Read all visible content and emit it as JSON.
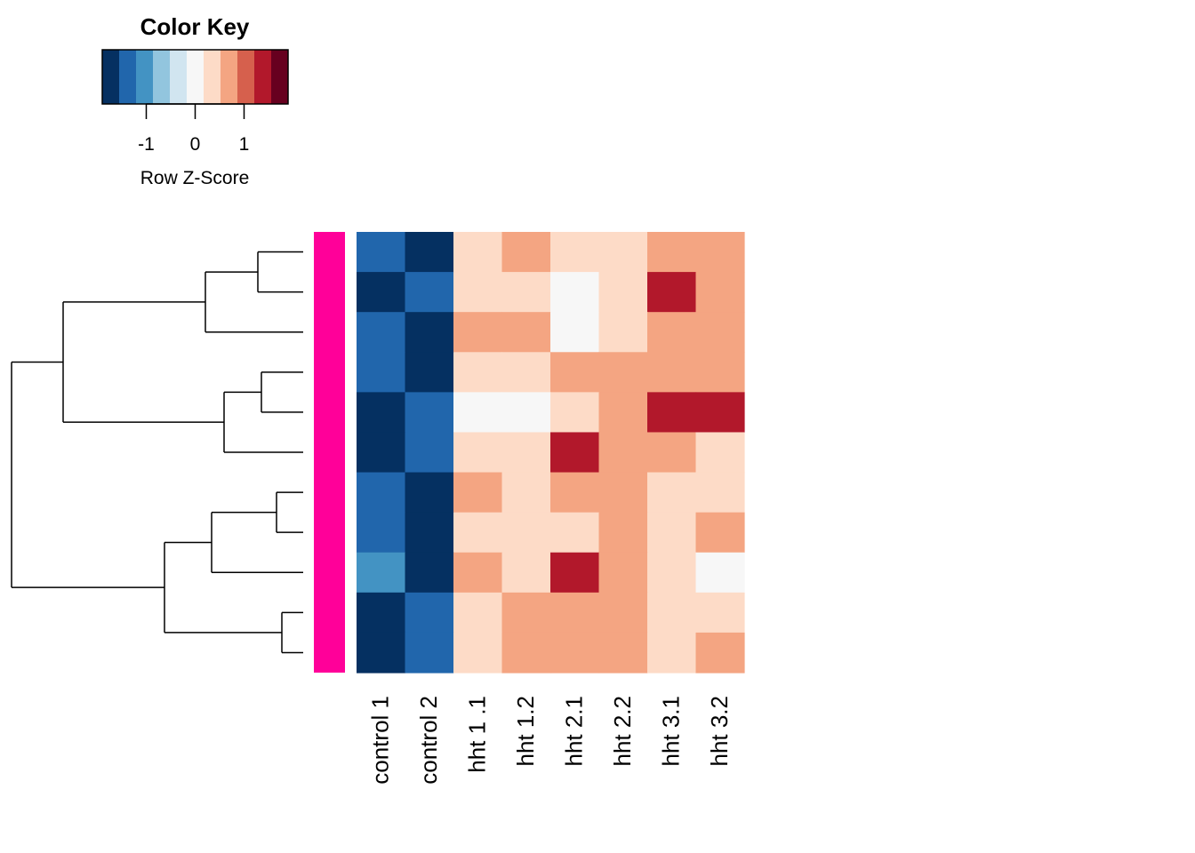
{
  "chart_data": {
    "type": "heatmap",
    "title": "",
    "columns": [
      "control 1",
      "control 2",
      "hht 1 .1",
      "hht 1.2",
      "hht 2.1",
      "hht 2.2",
      "hht 3.1",
      "hht 3.2"
    ],
    "rows": 11,
    "values": [
      [
        -1.5,
        -2.1,
        0.3,
        0.8,
        0.3,
        0.3,
        0.8,
        0.8
      ],
      [
        -2.1,
        -1.5,
        0.3,
        0.3,
        0.0,
        0.3,
        1.3,
        0.8
      ],
      [
        -1.5,
        -2.1,
        0.8,
        0.8,
        0.0,
        0.3,
        0.8,
        0.8
      ],
      [
        -1.5,
        -2.1,
        0.3,
        0.3,
        0.8,
        0.8,
        0.8,
        0.8
      ],
      [
        -2.1,
        -1.5,
        0.0,
        0.0,
        0.3,
        0.8,
        1.3,
        1.3
      ],
      [
        -2.1,
        -1.5,
        0.3,
        0.3,
        1.3,
        0.8,
        0.8,
        0.3
      ],
      [
        -1.5,
        -2.1,
        0.8,
        0.3,
        0.8,
        0.8,
        0.3,
        0.3
      ],
      [
        -1.5,
        -2.1,
        0.3,
        0.3,
        0.3,
        0.8,
        0.3,
        0.8
      ],
      [
        -1.1,
        -2.1,
        0.8,
        0.3,
        1.3,
        0.8,
        0.3,
        0.0
      ],
      [
        -2.1,
        -1.5,
        0.3,
        0.8,
        0.8,
        0.8,
        0.3,
        0.3
      ],
      [
        -2.1,
        -1.5,
        0.3,
        0.8,
        0.8,
        0.8,
        0.3,
        0.8
      ]
    ],
    "row_side_color": "#FF0099",
    "color_key": {
      "title": "Color Key",
      "xlabel": "Row Z-Score",
      "range": [
        -1.9,
        1.9
      ],
      "ticks": [
        -1,
        0,
        1
      ],
      "tick_labels": [
        "-1",
        "0",
        "1"
      ],
      "colors": [
        "#053061",
        "#2166AC",
        "#4393C3",
        "#92C5DE",
        "#D1E5F0",
        "#F7F7F7",
        "#FDDBC7",
        "#F4A582",
        "#D6604D",
        "#B2182B",
        "#67001F"
      ]
    }
  }
}
